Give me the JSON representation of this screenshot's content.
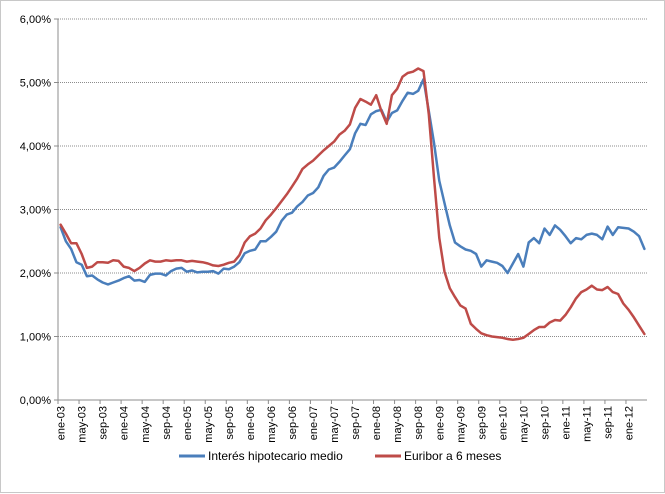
{
  "chart_data": {
    "type": "line",
    "title": "",
    "xlabel": "",
    "ylabel": "",
    "ylim": [
      0,
      6
    ],
    "y_ticks": [
      "0,00%",
      "1,00%",
      "2,00%",
      "3,00%",
      "4,00%",
      "5,00%",
      "6,00%"
    ],
    "x_tick_labels": [
      "ene-03",
      "may-03",
      "sep-03",
      "ene-04",
      "may-04",
      "sep-04",
      "ene-05",
      "may-05",
      "sep-05",
      "ene-06",
      "may-06",
      "sep-06",
      "ene-07",
      "may-07",
      "sep-07",
      "ene-08",
      "may-08",
      "sep-08",
      "ene-09",
      "may-09",
      "sep-09",
      "ene-10",
      "may-10",
      "sep-10",
      "ene-11",
      "may-11",
      "sep-11",
      "ene-12"
    ],
    "x_start": "ene-03",
    "grid": true,
    "legend_position": "bottom",
    "series": [
      {
        "name": "Interés hipotecario medio",
        "color": "#4a7ebb",
        "values": [
          2.72,
          2.5,
          2.38,
          2.17,
          2.13,
          1.95,
          1.96,
          1.9,
          1.85,
          1.82,
          1.85,
          1.88,
          1.92,
          1.95,
          1.88,
          1.89,
          1.86,
          1.97,
          1.99,
          1.99,
          1.96,
          2.03,
          2.07,
          2.08,
          2.02,
          2.04,
          2.01,
          2.02,
          2.02,
          2.03,
          1.99,
          2.07,
          2.06,
          2.1,
          2.17,
          2.31,
          2.35,
          2.37,
          2.5,
          2.5,
          2.57,
          2.65,
          2.82,
          2.92,
          2.95,
          3.05,
          3.12,
          3.22,
          3.26,
          3.35,
          3.53,
          3.63,
          3.66,
          3.75,
          3.85,
          3.95,
          4.2,
          4.35,
          4.33,
          4.5,
          4.55,
          4.57,
          4.38,
          4.52,
          4.56,
          4.71,
          4.84,
          4.82,
          4.87,
          5.05,
          4.55,
          4.05,
          3.45,
          3.1,
          2.75,
          2.48,
          2.42,
          2.37,
          2.35,
          2.3,
          2.1,
          2.2,
          2.18,
          2.16,
          2.11,
          2.0,
          2.15,
          2.3,
          2.1,
          2.48,
          2.55,
          2.47,
          2.7,
          2.6,
          2.75,
          2.68,
          2.58,
          2.47,
          2.55,
          2.53,
          2.6,
          2.62,
          2.6,
          2.53,
          2.73,
          2.6,
          2.72,
          2.71,
          2.7,
          2.65,
          2.58,
          2.38
        ]
      },
      {
        "name": "Euribor a 6 meses",
        "color": "#be4b48",
        "values": [
          2.76,
          2.62,
          2.47,
          2.47,
          2.3,
          2.08,
          2.1,
          2.17,
          2.17,
          2.16,
          2.2,
          2.19,
          2.1,
          2.08,
          2.03,
          2.08,
          2.15,
          2.2,
          2.18,
          2.18,
          2.2,
          2.19,
          2.2,
          2.2,
          2.18,
          2.19,
          2.18,
          2.17,
          2.15,
          2.12,
          2.11,
          2.13,
          2.16,
          2.18,
          2.28,
          2.48,
          2.58,
          2.62,
          2.7,
          2.83,
          2.92,
          3.02,
          3.13,
          3.24,
          3.36,
          3.49,
          3.64,
          3.71,
          3.77,
          3.85,
          3.93,
          4.0,
          4.07,
          4.18,
          4.24,
          4.34,
          4.6,
          4.74,
          4.7,
          4.65,
          4.8,
          4.55,
          4.35,
          4.8,
          4.9,
          5.09,
          5.15,
          5.17,
          5.22,
          5.18,
          4.5,
          3.5,
          2.55,
          2.02,
          1.76,
          1.62,
          1.49,
          1.44,
          1.2,
          1.12,
          1.05,
          1.02,
          1.0,
          0.99,
          0.98,
          0.96,
          0.95,
          0.96,
          0.98,
          1.04,
          1.1,
          1.15,
          1.15,
          1.22,
          1.26,
          1.25,
          1.34,
          1.46,
          1.6,
          1.7,
          1.74,
          1.8,
          1.74,
          1.73,
          1.78,
          1.7,
          1.67,
          1.52,
          1.42,
          1.3,
          1.17,
          1.04
        ]
      }
    ]
  }
}
